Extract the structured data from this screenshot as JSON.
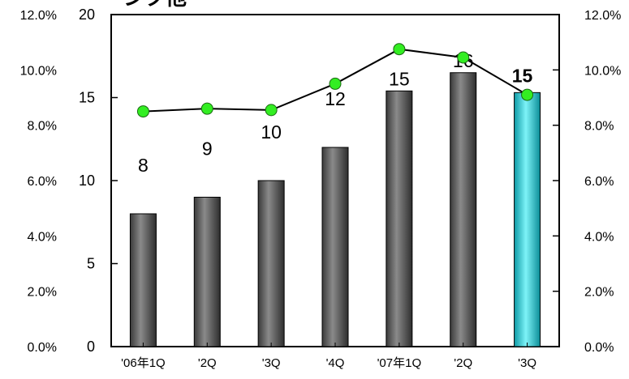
{
  "title_fragment": "ンク他",
  "chart_data": {
    "type": "bar",
    "categories": [
      "'06年1Q",
      "'2Q",
      "'3Q",
      "'4Q",
      "'07年1Q",
      "'2Q",
      "'3Q"
    ],
    "series": [
      {
        "values": [
          8,
          9,
          10,
          12,
          15.4,
          16.5,
          15.3
        ],
        "data_labels": [
          "8",
          "9",
          "10",
          "12",
          "15",
          "16",
          "15"
        ],
        "color": "#5a5a5a",
        "highlight_index": 6,
        "highlight_color": "#19c7d2",
        "axis": "left"
      },
      {
        "type": "line",
        "values": [
          8.5,
          8.6,
          8.55,
          9.5,
          10.75,
          10.45,
          9.1
        ],
        "color": "#000000",
        "marker_color": "#33ee22",
        "axis": "right"
      }
    ],
    "left_axis": {
      "ylim": [
        0,
        20
      ],
      "ticks": [
        "0",
        "5",
        "10",
        "15",
        "20"
      ]
    },
    "right_axis": {
      "ylim": [
        0,
        12
      ],
      "ticks": [
        "0.0%",
        "2.0%",
        "4.0%",
        "6.0%",
        "8.0%",
        "10.0%",
        "12.0%"
      ]
    },
    "outer_left_ticks": [
      "0.0%",
      "2.0%",
      "4.0%",
      "6.0%",
      "8.0%",
      "10.0%",
      "12.0%"
    ],
    "grid": false,
    "legend": "none"
  }
}
